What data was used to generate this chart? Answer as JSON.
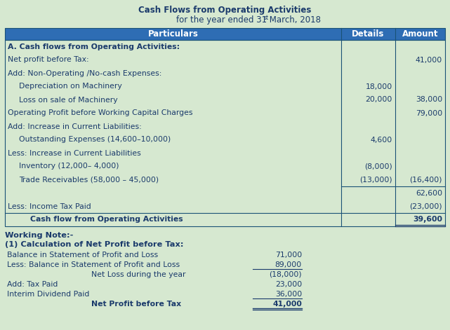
{
  "title1": "Cash Flows from Operating Activities",
  "title2": "for the year ended 31",
  "title2_super": "st",
  "title2_end": " March, 2018",
  "bg_color": "#d6e8d0",
  "header_bg": "#2E6DB4",
  "header_text_color": "#ffffff",
  "cell_text_color": "#1a3a6b",
  "border_color": "#1a5276",
  "header_row": [
    "Particulars",
    "Details",
    "Amount"
  ],
  "main_table": [
    {
      "text": "A. Cash flows from Operating Activities:",
      "indent": 0,
      "bold": true,
      "details": "",
      "amount": "",
      "amount_bold": false
    },
    {
      "text": "Net profit before Tax:",
      "indent": 0,
      "bold": false,
      "details": "",
      "amount": "41,000",
      "amount_bold": false
    },
    {
      "text": "Add: Non-Operating /No-cash Expenses:",
      "indent": 0,
      "bold": false,
      "details": "",
      "amount": "",
      "amount_bold": false
    },
    {
      "text": "Depreciation on Machinery",
      "indent": 1,
      "bold": false,
      "details": "18,000",
      "amount": "",
      "amount_bold": false
    },
    {
      "text": "Loss on sale of Machinery",
      "indent": 1,
      "bold": false,
      "details": "20,000",
      "amount": "38,000",
      "amount_bold": false
    },
    {
      "text": "Operating Profit before Working Capital Charges",
      "indent": 0,
      "bold": false,
      "details": "",
      "amount": "79,000",
      "amount_bold": false
    },
    {
      "text": "Add: Increase in Current Liabilities:",
      "indent": 0,
      "bold": false,
      "details": "",
      "amount": "",
      "amount_bold": false
    },
    {
      "text": "Outstanding Expenses (14,600–10,000)",
      "indent": 1,
      "bold": false,
      "details": "4,600",
      "amount": "",
      "amount_bold": false
    },
    {
      "text": "Less: Increase in Current Liabilities",
      "indent": 0,
      "bold": false,
      "details": "",
      "amount": "",
      "amount_bold": false
    },
    {
      "text": "Inventory (12,000– 4,000)",
      "indent": 1,
      "bold": false,
      "details": "(8,000)",
      "amount": "",
      "amount_bold": false
    },
    {
      "text": "Trade Receivables (58,000 – 45,000)",
      "indent": 1,
      "bold": false,
      "details": "(13,000)",
      "amount": "(16,400)",
      "amount_bold": false
    },
    {
      "text": "",
      "indent": 0,
      "bold": false,
      "details": "",
      "amount": "62,600",
      "amount_bold": false
    },
    {
      "text": "Less: Income Tax Paid",
      "indent": 0,
      "bold": false,
      "details": "",
      "amount": "(23,000)",
      "amount_bold": false
    },
    {
      "text": "Cash flow from Operating Activities",
      "indent": 2,
      "bold": true,
      "details": "",
      "amount": "39,600",
      "amount_bold": true
    }
  ],
  "working_note_title1": "Working Note:-",
  "working_note_title2": "(1) Calculation of Net Profit before Tax:",
  "working_table": [
    {
      "label": "Balance in Statement of Profit and Loss",
      "indent": 0,
      "value": "71,000",
      "bold_label": false,
      "bold_value": false,
      "top_line": false,
      "bottom_line": false
    },
    {
      "label": "Less: Balance in Statement of Profit and Loss",
      "indent": 0,
      "value": "89,000",
      "bold_label": false,
      "bold_value": false,
      "top_line": false,
      "bottom_line": true
    },
    {
      "label": "Net Loss during the year",
      "indent": 1,
      "value": "(18,000)",
      "bold_label": false,
      "bold_value": false,
      "top_line": false,
      "bottom_line": false
    },
    {
      "label": "Add: Tax Paid",
      "indent": 0,
      "value": "23,000",
      "bold_label": false,
      "bold_value": false,
      "top_line": false,
      "bottom_line": false
    },
    {
      "label": "Interim Dividend Paid",
      "indent": 0,
      "value": "36,000",
      "bold_label": false,
      "bold_value": false,
      "top_line": false,
      "bottom_line": true
    },
    {
      "label": "Net Profit before Tax",
      "indent": 1,
      "value": "41,000",
      "bold_label": true,
      "bold_value": true,
      "top_line": false,
      "bottom_line": true
    }
  ],
  "fig_w": 6.41,
  "fig_h": 4.71,
  "dpi": 100
}
